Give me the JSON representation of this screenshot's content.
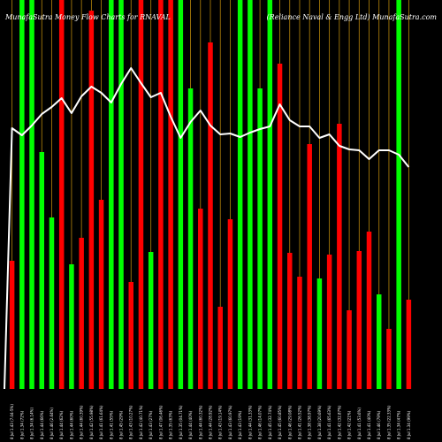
{
  "chart_data": {
    "type": "bar",
    "title_left": "MunafaSutra  Money Flow  Charts for RNAVAL",
    "title_right": "(Reliance   Naval & Engg Ltd) MunafaSutra.com",
    "ylim": [
      0,
      440
    ],
    "background": "#000000",
    "up_color": "#00ff00",
    "down_color": "#ff0000",
    "grid_color": "#b8860b",
    "line_color": "#ffffff",
    "bars": [
      {
        "label": "8 Jul 1.43 (7.04-5%)",
        "dir": "down",
        "value": 145
      },
      {
        "label": "8 Jul 1.34 (72%)",
        "dir": "up",
        "value": 440
      },
      {
        "label": "8 Jul 1.34 (6.14%)",
        "dir": "up",
        "value": 440
      },
      {
        "label": "8 Jul 1.44 (66%)",
        "dir": "up",
        "value": 268
      },
      {
        "label": "8 Jul 1.46 (2.64%)",
        "dir": "up",
        "value": 194
      },
      {
        "label": "8 Jul 1.44 (62%)",
        "dir": "down",
        "value": 440
      },
      {
        "label": "8 Jul 1.44 (60%)",
        "dir": "up",
        "value": 141
      },
      {
        "label": "8 Jul 1.44 (60.39%)",
        "dir": "down",
        "value": 171
      },
      {
        "label": "8 Jul 1.42 (55.98%)",
        "dir": "down",
        "value": 428
      },
      {
        "label": "8 Jul 1.41 (61.64%)",
        "dir": "down",
        "value": 214
      },
      {
        "label": "8 Jul 1.41 (55%)",
        "dir": "up",
        "value": 440
      },
      {
        "label": "8 Jul 1.45 (29%)",
        "dir": "up",
        "value": 440
      },
      {
        "label": "8 Jul 1.43 (10.27%)",
        "dir": "down",
        "value": 121
      },
      {
        "label": "8 Jul 1.42 (40.71%)",
        "dir": "down",
        "value": 440
      },
      {
        "label": "8 Jul 1.43 (27%)",
        "dir": "up",
        "value": 155
      },
      {
        "label": "8 Jul 1.47 (06.46%)",
        "dir": "down",
        "value": 440
      },
      {
        "label": "8 Jul 1.35 (63%)",
        "dir": "down",
        "value": 440
      },
      {
        "label": "8 Jul 1.35 (04.71%)",
        "dir": "up",
        "value": 440
      },
      {
        "label": "8 Jul 1.44 (40%)",
        "dir": "up",
        "value": 340
      },
      {
        "label": "8 Jul 1.44 (60.32%)",
        "dir": "down",
        "value": 204
      },
      {
        "label": "8 Jul 1.44 (28.92%)",
        "dir": "down",
        "value": 392
      },
      {
        "label": "8 Jul 1.43 (19.14%)",
        "dir": "down",
        "value": 93
      },
      {
        "label": "8 Jul 1.43 (60.97%)",
        "dir": "down",
        "value": 192
      },
      {
        "label": "8 Jul 1.43 (19%)",
        "dir": "up",
        "value": 440
      },
      {
        "label": "8 Jul 1.44 (31.33%)",
        "dir": "up",
        "value": 440
      },
      {
        "label": "8 Jul 1.46 (14.07%)",
        "dir": "up",
        "value": 340
      },
      {
        "label": "8 Jul 1.45 (32.74%)",
        "dir": "up",
        "value": 440
      },
      {
        "label": "8 Jul 1.45 (60.85%)",
        "dir": "down",
        "value": 368
      },
      {
        "label": "8 Jul 1.46 (29.08%)",
        "dir": "down",
        "value": 154
      },
      {
        "label": "8 Jul 1.41 (26.52%)",
        "dir": "down",
        "value": 127
      },
      {
        "label": "8 Jul 1.38 (38.97%)",
        "dir": "down",
        "value": 277
      },
      {
        "label": "8 Jul 1.38 (20.69%)",
        "dir": "up",
        "value": 125
      },
      {
        "label": "8 Jul 1.41 (65.63%)",
        "dir": "down",
        "value": 152
      },
      {
        "label": "8 Jul 1.42 (32.87%)",
        "dir": "down",
        "value": 300
      },
      {
        "label": "8 Jul 1.42 (21%)",
        "dir": "down",
        "value": 89
      },
      {
        "label": "8 Jul 1.41 (53.6%)",
        "dir": "down",
        "value": 156
      },
      {
        "label": "8 Jul 1.41 (40%)",
        "dir": "down",
        "value": 178
      },
      {
        "label": "8 Jul 1.46 (79%)",
        "dir": "up",
        "value": 107
      },
      {
        "label": "8 Jul 1.35 (22.33%)",
        "dir": "down",
        "value": 68
      },
      {
        "label": "8 Jul 1.34 (47%)",
        "dir": "up",
        "value": 440
      },
      {
        "label": "8 Jul 1.34 (99%)",
        "dir": "down",
        "value": 101
      }
    ],
    "line": [
      295,
      287,
      298,
      311,
      319,
      329,
      312,
      331,
      342,
      335,
      324,
      345,
      363,
      346,
      330,
      335,
      308,
      284,
      302,
      315,
      298,
      288,
      289,
      285,
      290,
      294,
      297,
      322,
      304,
      297,
      297,
      284,
      288,
      275,
      271,
      270,
      260,
      270,
      270,
      265,
      251
    ]
  }
}
